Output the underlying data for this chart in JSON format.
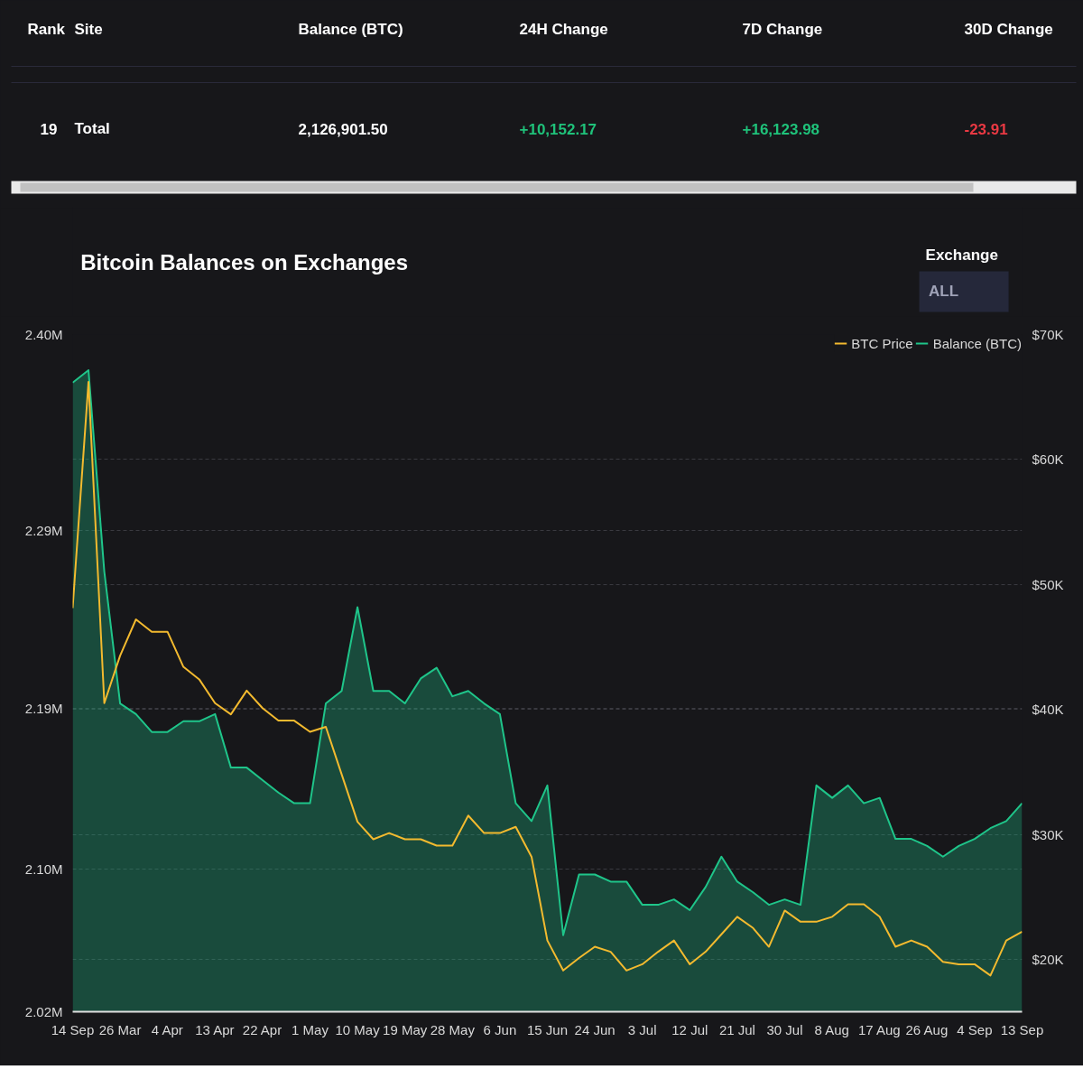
{
  "chart_data": [
    {
      "type": "other",
      "categories": [
        "Rank",
        "Site",
        "Balance (BTC)",
        "24H Change",
        "7D Change",
        "30D Change"
      ],
      "annotations": [
        "19",
        "Total",
        "2,126,901.50",
        "+10,152.17",
        "+16,123.98",
        "-23.91"
      ]
    },
    {
      "type": "line",
      "title": "Bitcoin Balances on Exchanges",
      "annotations": [
        "Exchange",
        "ALL"
      ],
      "categories": [
        "14 Sep",
        null,
        null,
        "26 Mar",
        null,
        null,
        "4 Apr",
        null,
        null,
        "13 Apr",
        null,
        null,
        "22 Apr",
        null,
        null,
        "1 May",
        null,
        null,
        "10 May",
        null,
        null,
        "19 May",
        null,
        null,
        "28 May",
        null,
        null,
        "6 Jun",
        null,
        null,
        "15 Jun",
        null,
        null,
        "24 Jun",
        null,
        null,
        "3 Jul",
        null,
        null,
        "12 Jul",
        null,
        null,
        "21 Jul",
        null,
        null,
        "30 Jul",
        null,
        null,
        "8 Aug",
        null,
        null,
        "17 Aug",
        null,
        null,
        "26 Aug",
        null,
        null,
        "4 Sep",
        null,
        null,
        "13 Sep"
      ],
      "ylim": [
        2.02,
        2.4
      ],
      "yticks": [
        {
          "value": 2.02,
          "label": "2.02M"
        },
        {
          "value": 2.1,
          "label": "2.10M"
        },
        {
          "value": 2.19,
          "label": "2.19M"
        },
        {
          "value": 2.29,
          "label": "2.29M"
        },
        {
          "value": 2.4,
          "label": "2.40M"
        }
      ],
      "y2lim": [
        15800,
        70000
      ],
      "y2ticks": [
        {
          "value": 20000,
          "label": "$20K"
        },
        {
          "value": 30000,
          "label": "$30K"
        },
        {
          "value": 40000,
          "label": "$40K"
        },
        {
          "value": 50000,
          "label": "$50K"
        },
        {
          "value": 60000,
          "label": "$60K"
        },
        {
          "value": 70000,
          "label": "$70K"
        }
      ],
      "grid": "y",
      "legend": "top right",
      "marker": "none",
      "series": [
        {
          "name": "BTC Price",
          "type": "line",
          "axis": "y2",
          "color": "#f3ba2f",
          "values": [
            48100,
            66200,
            40500,
            44300,
            47200,
            46200,
            46200,
            43400,
            42400,
            40500,
            39600,
            41500,
            40100,
            39100,
            39100,
            38200,
            38600,
            34800,
            31000,
            29600,
            30100,
            29600,
            29600,
            29100,
            29100,
            31500,
            30100,
            30100,
            30600,
            28200,
            21500,
            19100,
            20100,
            21000,
            20600,
            19100,
            19600,
            20600,
            21500,
            19600,
            20600,
            22000,
            23400,
            22500,
            21000,
            23900,
            23000,
            23000,
            23400,
            24400,
            24400,
            23400,
            21000,
            21500,
            21000,
            19800,
            19600,
            19600,
            18700,
            21500,
            22200
          ]
        },
        {
          "name": "Balance (BTC)",
          "type": "area",
          "color": "#1fc58a",
          "values": [
            2.373,
            2.38,
            2.267,
            2.193,
            2.187,
            2.177,
            2.177,
            2.183,
            2.183,
            2.187,
            2.157,
            2.157,
            2.15,
            2.143,
            2.137,
            2.137,
            2.193,
            2.2,
            2.247,
            2.2,
            2.2,
            2.193,
            2.207,
            2.213,
            2.197,
            2.2,
            2.193,
            2.187,
            2.137,
            2.127,
            2.147,
            2.063,
            2.097,
            2.097,
            2.093,
            2.093,
            2.08,
            2.08,
            2.083,
            2.077,
            2.09,
            2.107,
            2.093,
            2.087,
            2.08,
            2.083,
            2.08,
            2.147,
            2.14,
            2.147,
            2.137,
            2.14,
            2.117,
            2.117,
            2.113,
            2.107,
            2.113,
            2.117,
            2.123,
            2.127,
            2.137
          ]
        }
      ]
    }
  ]
}
